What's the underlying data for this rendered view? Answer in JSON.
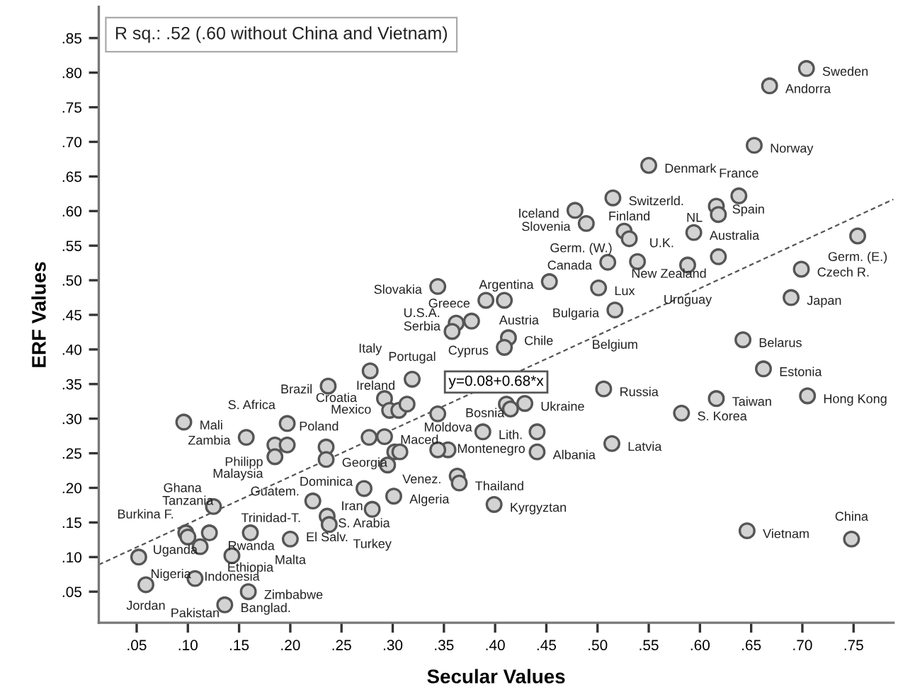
{
  "chart_data": {
    "type": "scatter",
    "xlabel": "Secular Values",
    "ylabel": "ERF Values",
    "xlim": [
      0.013,
      0.789
    ],
    "ylim": [
      0.005,
      0.895
    ],
    "xticks": [
      {
        "value": 0.05,
        "label": ".05"
      },
      {
        "value": 0.1,
        "label": ".10"
      },
      {
        "value": 0.15,
        "label": ".15"
      },
      {
        "value": 0.2,
        "label": ".20"
      },
      {
        "value": 0.25,
        "label": ".25"
      },
      {
        "value": 0.3,
        "label": ".30"
      },
      {
        "value": 0.35,
        "label": ".35"
      },
      {
        "value": 0.4,
        "label": ".40"
      },
      {
        "value": 0.45,
        "label": ".45"
      },
      {
        "value": 0.5,
        "label": ".50"
      },
      {
        "value": 0.55,
        "label": ".55"
      },
      {
        "value": 0.6,
        "label": ".60"
      },
      {
        "value": 0.65,
        "label": ".65"
      },
      {
        "value": 0.7,
        "label": ".70"
      },
      {
        "value": 0.75,
        "label": ".75"
      }
    ],
    "yticks": [
      {
        "value": 0.05,
        "label": ".05"
      },
      {
        "value": 0.1,
        "label": ".10"
      },
      {
        "value": 0.15,
        "label": ".15"
      },
      {
        "value": 0.2,
        "label": ".20"
      },
      {
        "value": 0.25,
        "label": ".25"
      },
      {
        "value": 0.3,
        "label": ".30"
      },
      {
        "value": 0.35,
        "label": ".35"
      },
      {
        "value": 0.4,
        "label": ".40"
      },
      {
        "value": 0.45,
        "label": ".45"
      },
      {
        "value": 0.5,
        "label": ".50"
      },
      {
        "value": 0.55,
        "label": ".55"
      },
      {
        "value": 0.6,
        "label": ".60"
      },
      {
        "value": 0.65,
        "label": ".65"
      },
      {
        "value": 0.7,
        "label": ".70"
      },
      {
        "value": 0.75,
        "label": ".75"
      },
      {
        "value": 0.8,
        "label": ".80"
      },
      {
        "value": 0.85,
        "label": ".85"
      }
    ],
    "grid": false,
    "legend": false,
    "series": [
      {
        "color": "#d3d3d3",
        "marker": "circle",
        "x": [
          0.704,
          0.668,
          0.653,
          0.55,
          0.515,
          0.478,
          0.489,
          0.616,
          0.618,
          0.638,
          0.526,
          0.531,
          0.594,
          0.618,
          0.754,
          0.699,
          0.689,
          0.51,
          0.539,
          0.588,
          0.501,
          0.517,
          0.453,
          0.391,
          0.409,
          0.344,
          0.362,
          0.377,
          0.358,
          0.413,
          0.409,
          0.642,
          0.662,
          0.705,
          0.616,
          0.582,
          0.506,
          0.514,
          0.441,
          0.441,
          0.388,
          0.429,
          0.411,
          0.415,
          0.399,
          0.646,
          0.748,
          0.344,
          0.354,
          0.344,
          0.363,
          0.365,
          0.237,
          0.278,
          0.319,
          0.292,
          0.297,
          0.306,
          0.314,
          0.277,
          0.292,
          0.302,
          0.307,
          0.295,
          0.235,
          0.235,
          0.272,
          0.301,
          0.28,
          0.222,
          0.236,
          0.238,
          0.2,
          0.161,
          0.125,
          0.098,
          0.1,
          0.112,
          0.121,
          0.143,
          0.052,
          0.059,
          0.107,
          0.159,
          0.136,
          0.096,
          0.157,
          0.185,
          0.197,
          0.185,
          0.197
        ],
        "values": [
          0.806,
          0.781,
          0.695,
          0.666,
          0.619,
          0.601,
          0.582,
          0.607,
          0.595,
          0.622,
          0.571,
          0.56,
          0.569,
          0.534,
          0.564,
          0.516,
          0.475,
          0.526,
          0.527,
          0.522,
          0.489,
          0.457,
          0.498,
          0.471,
          0.471,
          0.491,
          0.438,
          0.441,
          0.426,
          0.417,
          0.403,
          0.414,
          0.372,
          0.333,
          0.329,
          0.308,
          0.343,
          0.264,
          0.281,
          0.252,
          0.281,
          0.322,
          0.321,
          0.314,
          0.176,
          0.138,
          0.126,
          0.307,
          0.255,
          0.255,
          0.217,
          0.207,
          0.347,
          0.369,
          0.357,
          0.329,
          0.312,
          0.312,
          0.321,
          0.273,
          0.274,
          0.252,
          0.252,
          0.233,
          0.259,
          0.241,
          0.199,
          0.188,
          0.169,
          0.181,
          0.159,
          0.147,
          0.126,
          0.135,
          0.173,
          0.135,
          0.129,
          0.115,
          0.135,
          0.102,
          0.1,
          0.06,
          0.069,
          0.05,
          0.031,
          0.295,
          0.273,
          0.262,
          0.262,
          0.245,
          0.293
        ]
      },
      {
        "type": "line",
        "name": "y=0.08+0.68*x",
        "color": "#555555",
        "marker": "none",
        "line_style": "dashed",
        "x": [
          0.013,
          0.789
        ],
        "values": [
          0.089,
          0.617
        ]
      }
    ],
    "annotations": [
      "R sq.: .52 (.60 without China and Vietnam)",
      {
        "text": "Sweden",
        "x": 0.704,
        "y": 0.806
      },
      {
        "text": "Andorra",
        "x": 0.668,
        "y": 0.781
      },
      {
        "text": "Norway",
        "x": 0.653,
        "y": 0.695
      },
      {
        "text": "Denmark",
        "x": 0.55,
        "y": 0.666
      },
      {
        "text": "Switzerld.",
        "x": 0.515,
        "y": 0.619
      },
      {
        "text": "Iceland",
        "x": 0.478,
        "y": 0.601
      },
      {
        "text": "Germ. (W.)",
        "x": 0.526,
        "y": 0.571
      },
      {
        "text": "Spain",
        "x": 0.616,
        "y": 0.607
      },
      {
        "text": "NL",
        "x": 0.618,
        "y": 0.595
      },
      {
        "text": "France",
        "x": 0.638,
        "y": 0.622
      },
      {
        "text": "Germ. (E.)",
        "x": 0.754,
        "y": 0.564
      },
      {
        "text": "Finland",
        "x": 0.531,
        "y": 0.56
      },
      {
        "text": "Australia",
        "x": 0.594,
        "y": 0.569
      },
      {
        "text": "New Zealand",
        "x": 0.618,
        "y": 0.534
      },
      {
        "text": "Slovenia",
        "x": 0.489,
        "y": 0.582
      },
      {
        "text": "Canada",
        "x": 0.51,
        "y": 0.526
      },
      {
        "text": "U.K.",
        "x": 0.539,
        "y": 0.527
      },
      {
        "text": "Lux",
        "x": 0.501,
        "y": 0.489
      },
      {
        "text": "Uruguay",
        "x": 0.588,
        "y": 0.522
      },
      {
        "text": "Czech R.",
        "x": 0.699,
        "y": 0.516
      },
      {
        "text": "Argentina",
        "x": 0.453,
        "y": 0.498
      },
      {
        "text": "Bulgaria",
        "x": 0.517,
        "y": 0.457
      },
      {
        "text": "Japan",
        "x": 0.689,
        "y": 0.475
      },
      {
        "text": "Greece",
        "x": 0.391,
        "y": 0.471
      },
      {
        "text": "Slovakia",
        "x": 0.344,
        "y": 0.491
      },
      {
        "text": "Serbia",
        "x": 0.362,
        "y": 0.438
      },
      {
        "text": "Austria",
        "x": 0.377,
        "y": 0.441
      },
      {
        "text": "Chile",
        "x": 0.413,
        "y": 0.417
      },
      {
        "text": "Belgium",
        "x": 0.517,
        "y": 0.457
      },
      {
        "text": "Belarus",
        "x": 0.642,
        "y": 0.414
      },
      {
        "text": "Estonia",
        "x": 0.662,
        "y": 0.372
      },
      {
        "text": "Hong Kong",
        "x": 0.705,
        "y": 0.333
      },
      {
        "text": "Cyprus",
        "x": 0.409,
        "y": 0.403
      },
      {
        "text": "Russia",
        "x": 0.506,
        "y": 0.343
      },
      {
        "text": "S. Korea",
        "x": 0.582,
        "y": 0.308
      },
      {
        "text": "Taiwan",
        "x": 0.616,
        "y": 0.329
      },
      {
        "text": "Ukraine",
        "x": 0.429,
        "y": 0.322
      },
      {
        "text": "Montenegro",
        "x": 0.441,
        "y": 0.281
      },
      {
        "text": "Lith.",
        "x": 0.388,
        "y": 0.281
      },
      {
        "text": "Moldova",
        "x": 0.354,
        "y": 0.255
      },
      {
        "text": "Albania",
        "x": 0.441,
        "y": 0.252
      },
      {
        "text": "Latvia",
        "x": 0.514,
        "y": 0.264
      },
      {
        "text": "Thailand",
        "x": 0.365,
        "y": 0.207
      },
      {
        "text": "Kyrgyztan",
        "x": 0.399,
        "y": 0.176
      },
      {
        "text": "Vietnam",
        "x": 0.646,
        "y": 0.138
      },
      {
        "text": "China",
        "x": 0.748,
        "y": 0.126
      },
      {
        "text": "Bosnia",
        "x": 0.344,
        "y": 0.307
      },
      {
        "text": "Ireland",
        "x": 0.314,
        "y": 0.321
      },
      {
        "text": "Portugal",
        "x": 0.319,
        "y": 0.357
      },
      {
        "text": "Italy",
        "x": 0.278,
        "y": 0.369
      },
      {
        "text": "U.S.A.",
        "x": 0.358,
        "y": 0.426
      },
      {
        "text": "Mexico",
        "x": 0.306,
        "y": 0.312
      },
      {
        "text": "Brazil",
        "x": 0.237,
        "y": 0.347
      },
      {
        "text": "Croatia",
        "x": 0.292,
        "y": 0.329
      },
      {
        "text": "Mali",
        "x": 0.096,
        "y": 0.295
      },
      {
        "text": "Poland",
        "x": 0.197,
        "y": 0.262
      },
      {
        "text": "Dominica",
        "x": 0.235,
        "y": 0.259
      },
      {
        "text": "Philipp",
        "x": 0.185,
        "y": 0.262
      },
      {
        "text": "S. Africa",
        "x": 0.197,
        "y": 0.293
      },
      {
        "text": "Zambia",
        "x": 0.157,
        "y": 0.273
      },
      {
        "text": "Maced.",
        "x": 0.292,
        "y": 0.274
      },
      {
        "text": "Malaysia",
        "x": 0.185,
        "y": 0.245
      },
      {
        "text": "Guatem.",
        "x": 0.185,
        "y": 0.245
      },
      {
        "text": "Georgia",
        "x": 0.235,
        "y": 0.241
      },
      {
        "text": "Venez.",
        "x": 0.363,
        "y": 0.217
      },
      {
        "text": "Burkina F.",
        "x": 0.098,
        "y": 0.135
      },
      {
        "text": "Trinidad-T.",
        "x": 0.222,
        "y": 0.181
      },
      {
        "text": "S. Arabia",
        "x": 0.272,
        "y": 0.199
      },
      {
        "text": "Algeria",
        "x": 0.301,
        "y": 0.188
      },
      {
        "text": "Ghana",
        "x": 0.125,
        "y": 0.173
      },
      {
        "text": "Uganda",
        "x": 0.121,
        "y": 0.135
      },
      {
        "text": "El Salv.",
        "x": 0.236,
        "y": 0.159
      },
      {
        "text": "Tanzania",
        "x": 0.1,
        "y": 0.129
      },
      {
        "text": "Turkey",
        "x": 0.28,
        "y": 0.169
      },
      {
        "text": "Nigeria",
        "x": 0.052,
        "y": 0.1
      },
      {
        "text": "Iran",
        "x": 0.238,
        "y": 0.147
      },
      {
        "text": "Ethiopia",
        "x": 0.161,
        "y": 0.135
      },
      {
        "text": "Malta",
        "x": 0.2,
        "y": 0.126
      },
      {
        "text": "Rwanda",
        "x": 0.112,
        "y": 0.115
      },
      {
        "text": "Indonesia",
        "x": 0.143,
        "y": 0.102
      },
      {
        "text": "Zimbabwe",
        "x": 0.159,
        "y": 0.05
      },
      {
        "text": "Pakistan",
        "x": 0.107,
        "y": 0.069
      },
      {
        "text": "Jordan",
        "x": 0.059,
        "y": 0.06
      },
      {
        "text": "Banglad.",
        "x": 0.136,
        "y": 0.031
      }
    ]
  }
}
